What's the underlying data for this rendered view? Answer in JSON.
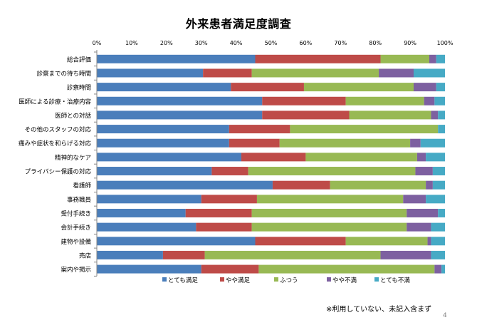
{
  "chart_data": {
    "type": "bar",
    "orientation": "horizontal",
    "stacked": true,
    "normalized": true,
    "title": "外来患者満足度調査",
    "xlim": [
      0,
      100
    ],
    "x_ticks": [
      "0%",
      "10%",
      "20%",
      "30%",
      "40%",
      "50%",
      "60%",
      "70%",
      "80%",
      "90%",
      "100%"
    ],
    "grid": false,
    "legend_position": "bottom",
    "categories": [
      "総合評価",
      "診察までの待ち時間",
      "診察時間",
      "医師による診療・治療内容",
      "医師との対話",
      "その他のスタッフの対応",
      "痛みや症状を和らげる対応",
      "精神的なケア",
      "プライバシー保護の対応",
      "看護師",
      "事務職員",
      "受付手続き",
      "会計手続き",
      "建物や設備",
      "売店",
      "案内や掲示"
    ],
    "series": [
      {
        "name": "とても満足",
        "color": "#4a7ebb",
        "values": [
          45.5,
          30.5,
          38.5,
          47.5,
          47.5,
          38,
          38,
          41.5,
          33,
          50.5,
          30,
          25.5,
          28.5,
          45.5,
          19,
          30
        ]
      },
      {
        "name": "やや満足",
        "color": "#be4b48",
        "values": [
          36,
          14,
          21,
          24,
          25,
          17.5,
          14.5,
          18.5,
          10.5,
          16.5,
          16,
          19,
          16,
          26,
          12,
          16.5
        ]
      },
      {
        "name": "ふつう",
        "color": "#98b954",
        "values": [
          14,
          36.5,
          31.5,
          22.5,
          23.5,
          42.5,
          37.5,
          32,
          48,
          27.5,
          42,
          44.5,
          44.5,
          23.5,
          50.5,
          50.5
        ]
      },
      {
        "name": "やや不満",
        "color": "#7d60a0",
        "values": [
          2,
          10,
          6.5,
          3,
          2,
          0,
          3,
          2.5,
          5,
          2,
          6.5,
          9,
          7,
          1,
          14.5,
          2
        ]
      },
      {
        "name": "とても不満",
        "color": "#46aac5",
        "values": [
          2.5,
          9,
          2.5,
          3,
          2,
          2,
          7,
          5.5,
          3.5,
          3.5,
          5.5,
          2,
          4,
          4,
          4,
          1
        ]
      }
    ],
    "footnote": "※利用していない、未記入含まず",
    "page_number": "4"
  }
}
